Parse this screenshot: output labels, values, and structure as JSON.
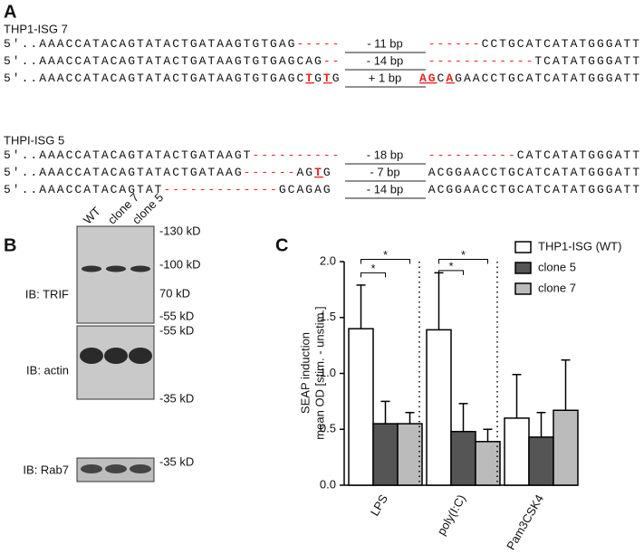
{
  "panel_a": {
    "label": "A",
    "groups": [
      {
        "title": "THP1-ISG 7",
        "rows": [
          {
            "before": [
              {
                "text": "5'..AAACCATACAGTATACTGATAAGTGTGAG",
                "style": "seq"
              },
              {
                "text": "-----",
                "style": "gap"
              }
            ],
            "size": "- 11 bp",
            "after": [
              {
                "text": "------",
                "style": "gap"
              },
              {
                "text": "CCTGCATCATATGGGATT",
                "style": "seq"
              }
            ]
          },
          {
            "before": [
              {
                "text": "5'..AAACCATACAGTATACTGATAAGTGTGAGCAG",
                "style": "seq"
              },
              {
                "text": "--",
                "style": "gap"
              }
            ],
            "size": "- 14 bp",
            "after": [
              {
                "text": "------------",
                "style": "gap"
              },
              {
                "text": "TCATATGGGATT",
                "style": "seq"
              }
            ]
          },
          {
            "before": [
              {
                "text": "5'..AAACCATACAGTATACTGATAAGTGTGAGC",
                "style": "seq"
              },
              {
                "text": "T",
                "style": "mut"
              },
              {
                "text": "G",
                "style": "seq"
              },
              {
                "text": "T",
                "style": "mut"
              },
              {
                "text": "G",
                "style": "seq"
              }
            ],
            "size": "+ 1 bp",
            "after": [
              {
                "text": "AG",
                "style": "mut"
              },
              {
                "text": "C",
                "style": "seq"
              },
              {
                "text": "A",
                "style": "mut"
              },
              {
                "text": "GAACCTGCATCATATGGGATT",
                "style": "seq"
              }
            ]
          }
        ]
      },
      {
        "title": "THPI-ISG 5",
        "rows": [
          {
            "before": [
              {
                "text": "5'..AAACCATACAGTATACTGATAAGT",
                "style": "seq"
              },
              {
                "text": "----------",
                "style": "gap"
              }
            ],
            "size": "- 18 bp",
            "after": [
              {
                "text": "----------",
                "style": "gap"
              },
              {
                "text": "CATCATATGGGATT",
                "style": "seq"
              }
            ]
          },
          {
            "before": [
              {
                "text": "5'..AAACCATACAGTATACTGATAAG",
                "style": "seq"
              },
              {
                "text": "------",
                "style": "gap"
              },
              {
                "text": "AG",
                "style": "seq"
              },
              {
                "text": "T",
                "style": "mut"
              },
              {
                "text": "G",
                "style": "seq"
              }
            ],
            "size": "- 7 bp",
            "after": [
              {
                "text": "ACGGAACCTGCATCATATGGGATT",
                "style": "seq"
              }
            ]
          },
          {
            "before": [
              {
                "text": "5'..AAACCATACAGTAT",
                "style": "seq"
              },
              {
                "text": "-------------",
                "style": "gap"
              },
              {
                "text": "GCAGAG",
                "style": "seq"
              }
            ],
            "size": "- 14 bp",
            "after": [
              {
                "text": "ACGGAACCTGCATCATATGGGATT",
                "style": "seq"
              }
            ]
          }
        ]
      }
    ]
  },
  "panel_b": {
    "label": "B",
    "lanes": [
      "WT",
      "clone 7",
      "clone 5"
    ],
    "blots": [
      {
        "label": "IB: TRIF",
        "markers": [
          "-130 kD",
          "-100 kD",
          "70 kD",
          "-55 kD"
        ]
      },
      {
        "label": "IB: actin",
        "markers": [
          "-55 kD",
          "-35 kD"
        ]
      },
      {
        "label": "IB: Rab7",
        "markers": [
          "-35 kD"
        ]
      }
    ]
  },
  "chart_data": {
    "type": "bar",
    "label": "C",
    "y_label": [
      "SEAP induction",
      "mean OD [stim. - unstim.]"
    ],
    "categories": [
      "LPS",
      "poly(I:C)",
      "Pam3CSK4"
    ],
    "series": [
      {
        "name": "THP1-ISG (WT)",
        "color": "#ffffff",
        "values": [
          1.4,
          1.39,
          0.6
        ],
        "errors": [
          0.39,
          0.51,
          0.39
        ]
      },
      {
        "name": "clone 5",
        "color": "#555555",
        "values": [
          0.55,
          0.48,
          0.43
        ],
        "errors": [
          0.2,
          0.25,
          0.22
        ]
      },
      {
        "name": "clone 7",
        "color": "#bbbbbb",
        "values": [
          0.55,
          0.39,
          0.67
        ],
        "errors": [
          0.1,
          0.11,
          0.45
        ]
      }
    ],
    "ylim": [
      0,
      2.0
    ],
    "yticks": [
      {
        "value": 0,
        "label": "0.0"
      },
      0.5,
      {
        "value": 1,
        "label": "1.0"
      },
      1.5,
      {
        "value": 2,
        "label": "2.0"
      }
    ],
    "significance": [
      "*",
      "*",
      "*",
      "*"
    ],
    "legend": "upper right"
  }
}
